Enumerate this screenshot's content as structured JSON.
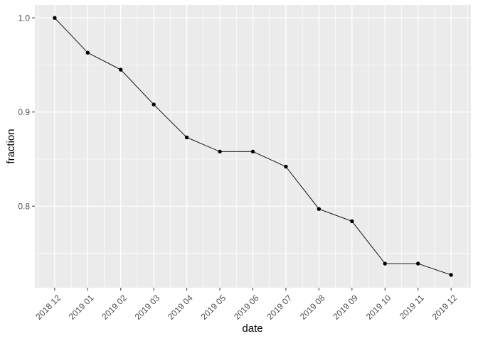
{
  "chart_data": {
    "type": "line",
    "title": "",
    "xlabel": "date",
    "ylabel": "fraction",
    "categories": [
      "2018 12",
      "2019 01",
      "2019 02",
      "2019 03",
      "2019 04",
      "2019 05",
      "2019 06",
      "2019 07",
      "2019 08",
      "2019 09",
      "2019 10",
      "2019 11",
      "2019 12"
    ],
    "values": [
      1.0,
      0.963,
      0.945,
      0.908,
      0.873,
      0.858,
      0.858,
      0.842,
      0.797,
      0.784,
      0.739,
      0.739,
      0.727
    ],
    "y_ticks": [
      0.8,
      0.9,
      1.0
    ],
    "y_minor_ticks": [
      0.75,
      0.85,
      0.95
    ],
    "ylim": [
      0.7134,
      1.0137
    ],
    "x_tick_angle": -45,
    "grid": "major+minor",
    "legend": "none",
    "style": "ggplot2-gray-theme",
    "marker": "filled-circle",
    "colors": {
      "figure_background": "#FFFFFF",
      "panel_background": "#EBEBEB",
      "gridline": "#FFFFFF",
      "series": "#000000",
      "tick_label": "#4D4D4D",
      "axis_title": "#000000",
      "tick_mark": "#333333"
    }
  }
}
